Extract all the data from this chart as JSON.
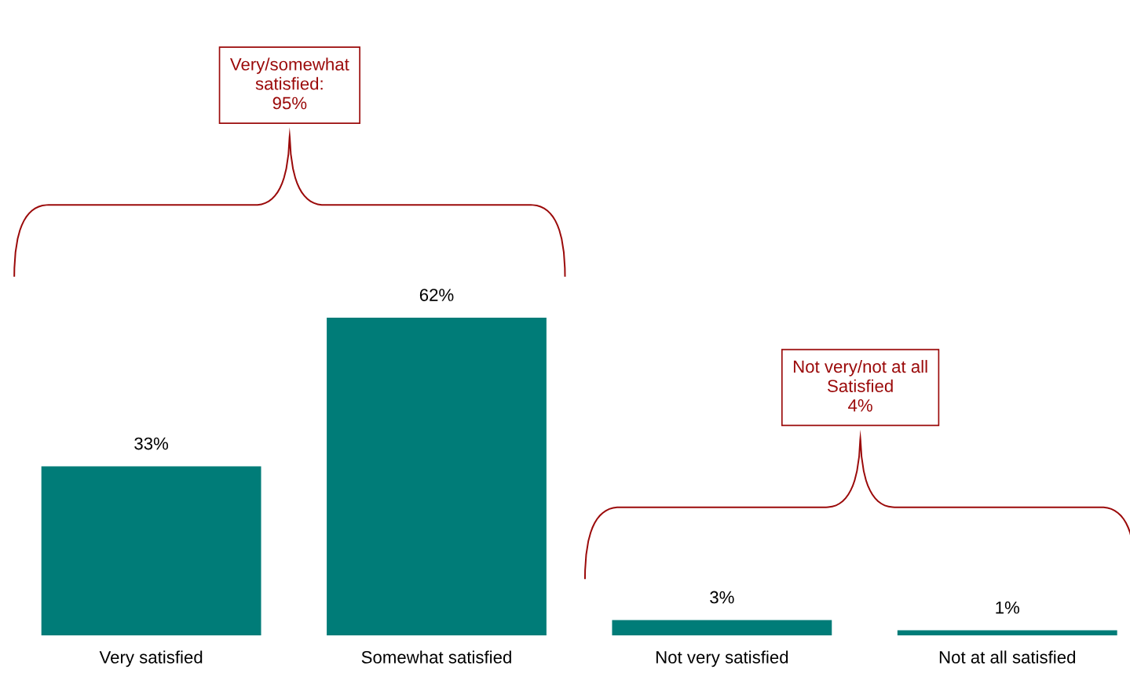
{
  "chart_data": {
    "type": "bar",
    "categories": [
      "Very satisfied",
      "Somewhat satisfied",
      "Not very satisfied",
      "Not at all satisfied"
    ],
    "values": [
      33,
      62,
      3,
      1
    ],
    "value_labels": [
      "33%",
      "62%",
      "3%",
      "1%"
    ],
    "color": "#007c78",
    "annotations": [
      "Very/somewhat\nsatisfied:\n95%",
      "Not very/not at all\nSatisfied\n4%"
    ],
    "grid": false,
    "legend": false
  }
}
